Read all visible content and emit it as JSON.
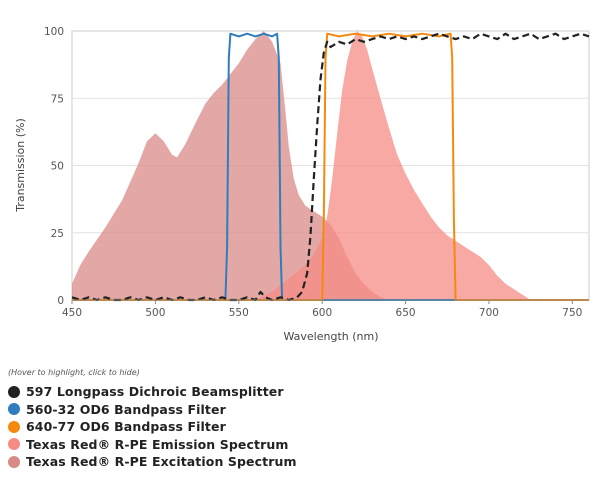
{
  "chart_data": {
    "type": "area",
    "xlabel": "Wavelength (nm)",
    "ylabel": "Transmission (%)",
    "xlim": [
      450,
      760
    ],
    "ylim": [
      0,
      100
    ],
    "x_ticks": [
      450,
      500,
      550,
      600,
      650,
      700,
      750
    ],
    "y_ticks": [
      0,
      25,
      50,
      75,
      100
    ],
    "legend_hint": "(Hover to highlight, click to hide)",
    "series": [
      {
        "name": "Texas Red® R-PE Excitation Spectrum",
        "color": "#d98a87",
        "style": "area",
        "points": [
          [
            450,
            6
          ],
          [
            455,
            13
          ],
          [
            460,
            18
          ],
          [
            470,
            27
          ],
          [
            480,
            37
          ],
          [
            490,
            51
          ],
          [
            495,
            59
          ],
          [
            500,
            62
          ],
          [
            505,
            59
          ],
          [
            510,
            54
          ],
          [
            513,
            53
          ],
          [
            518,
            58
          ],
          [
            525,
            67
          ],
          [
            530,
            73
          ],
          [
            535,
            77
          ],
          [
            540,
            80
          ],
          [
            545,
            84
          ],
          [
            550,
            88
          ],
          [
            555,
            93
          ],
          [
            560,
            97
          ],
          [
            565,
            100
          ],
          [
            570,
            96
          ],
          [
            575,
            88
          ],
          [
            578,
            70
          ],
          [
            580,
            57
          ],
          [
            583,
            45
          ],
          [
            586,
            39
          ],
          [
            590,
            35
          ],
          [
            595,
            33
          ],
          [
            600,
            31
          ],
          [
            605,
            28
          ],
          [
            610,
            23
          ],
          [
            615,
            16
          ],
          [
            620,
            10
          ],
          [
            625,
            6
          ],
          [
            630,
            3
          ],
          [
            635,
            1
          ],
          [
            640,
            0
          ]
        ]
      },
      {
        "name": "Texas Red® R-PE Emission Spectrum",
        "color": "#f58c84",
        "style": "area",
        "points": [
          [
            560,
            0
          ],
          [
            570,
            3
          ],
          [
            580,
            8
          ],
          [
            590,
            13
          ],
          [
            595,
            17
          ],
          [
            600,
            23
          ],
          [
            603,
            31
          ],
          [
            606,
            45
          ],
          [
            609,
            62
          ],
          [
            612,
            78
          ],
          [
            615,
            89
          ],
          [
            618,
            96
          ],
          [
            621,
            100
          ],
          [
            624,
            98
          ],
          [
            627,
            93
          ],
          [
            630,
            86
          ],
          [
            635,
            75
          ],
          [
            640,
            64
          ],
          [
            645,
            54
          ],
          [
            650,
            47
          ],
          [
            655,
            41
          ],
          [
            660,
            36
          ],
          [
            665,
            31
          ],
          [
            670,
            27
          ],
          [
            675,
            24
          ],
          [
            680,
            22
          ],
          [
            685,
            20
          ],
          [
            690,
            18
          ],
          [
            695,
            16
          ],
          [
            700,
            13
          ],
          [
            705,
            9
          ],
          [
            710,
            6
          ],
          [
            715,
            4
          ],
          [
            720,
            2
          ],
          [
            725,
            0
          ]
        ]
      },
      {
        "name": "560-32 OD6 Bandpass Filter",
        "color": "#2f7dbc",
        "style": "line",
        "points": [
          [
            450,
            0
          ],
          [
            542,
            0
          ],
          [
            543,
            20
          ],
          [
            544,
            90
          ],
          [
            545,
            99
          ],
          [
            550,
            98
          ],
          [
            555,
            99
          ],
          [
            560,
            98
          ],
          [
            565,
            99
          ],
          [
            570,
            98
          ],
          [
            573,
            99
          ],
          [
            574,
            90
          ],
          [
            575,
            20
          ],
          [
            576,
            0
          ],
          [
            760,
            0
          ]
        ]
      },
      {
        "name": "640-77 OD6 Bandpass Filter",
        "color": "#f5890f",
        "style": "line",
        "points": [
          [
            450,
            0
          ],
          [
            600,
            0
          ],
          [
            601,
            30
          ],
          [
            602,
            90
          ],
          [
            603,
            99
          ],
          [
            610,
            98
          ],
          [
            620,
            99
          ],
          [
            630,
            98
          ],
          [
            640,
            99
          ],
          [
            650,
            98
          ],
          [
            660,
            99
          ],
          [
            670,
            98
          ],
          [
            677,
            99
          ],
          [
            678,
            90
          ],
          [
            679,
            30
          ],
          [
            680,
            0
          ],
          [
            760,
            0
          ]
        ]
      },
      {
        "name": "597 Longpass Dichroic Beamsplitter",
        "color": "#222222",
        "style": "dashed",
        "points": [
          [
            450,
            1
          ],
          [
            455,
            0
          ],
          [
            460,
            1
          ],
          [
            465,
            0
          ],
          [
            470,
            1
          ],
          [
            475,
            0
          ],
          [
            480,
            0
          ],
          [
            485,
            1
          ],
          [
            490,
            0
          ],
          [
            495,
            1
          ],
          [
            500,
            0
          ],
          [
            505,
            1
          ],
          [
            510,
            0
          ],
          [
            515,
            1
          ],
          [
            520,
            0
          ],
          [
            525,
            0
          ],
          [
            530,
            1
          ],
          [
            535,
            0
          ],
          [
            540,
            1
          ],
          [
            545,
            0
          ],
          [
            550,
            0
          ],
          [
            555,
            1
          ],
          [
            560,
            0
          ],
          [
            563,
            3
          ],
          [
            566,
            1
          ],
          [
            570,
            0
          ],
          [
            575,
            1
          ],
          [
            580,
            0
          ],
          [
            585,
            1
          ],
          [
            588,
            3
          ],
          [
            591,
            10
          ],
          [
            593,
            24
          ],
          [
            595,
            45
          ],
          [
            597,
            65
          ],
          [
            599,
            82
          ],
          [
            601,
            92
          ],
          [
            603,
            96
          ],
          [
            605,
            94
          ],
          [
            610,
            96
          ],
          [
            615,
            95
          ],
          [
            620,
            97
          ],
          [
            625,
            96
          ],
          [
            630,
            97
          ],
          [
            635,
            98
          ],
          [
            640,
            97
          ],
          [
            645,
            98
          ],
          [
            650,
            97
          ],
          [
            655,
            98
          ],
          [
            660,
            97
          ],
          [
            665,
            98
          ],
          [
            670,
            99
          ],
          [
            675,
            98
          ],
          [
            680,
            97
          ],
          [
            685,
            98
          ],
          [
            690,
            97
          ],
          [
            695,
            99
          ],
          [
            700,
            98
          ],
          [
            705,
            97
          ],
          [
            710,
            99
          ],
          [
            715,
            97
          ],
          [
            720,
            98
          ],
          [
            725,
            99
          ],
          [
            730,
            97
          ],
          [
            735,
            98
          ],
          [
            740,
            99
          ],
          [
            745,
            97
          ],
          [
            750,
            98
          ],
          [
            755,
            99
          ],
          [
            760,
            98
          ]
        ]
      }
    ]
  }
}
